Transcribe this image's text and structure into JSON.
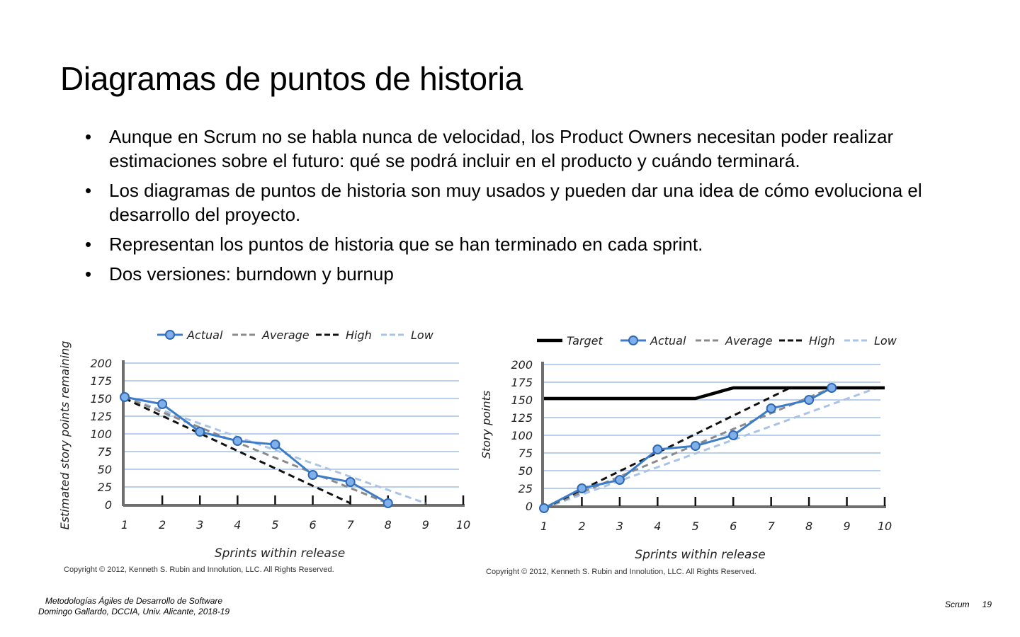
{
  "slide": {
    "title": "Diagramas de puntos de historia",
    "bullets": [
      "Aunque en Scrum no se habla nunca de velocidad, los Product Owners necesitan poder realizar estimaciones sobre el futuro: qué se podrá incluir en el producto y cuándo terminará.",
      "Los diagramas de puntos de historia son muy usados y pueden dar una idea de cómo evoluciona el desarrollo del proyecto.",
      "Representan los puntos de historia que se han terminado en cada sprint.",
      "Dos versiones: burndown y burnup"
    ]
  },
  "footer": {
    "course": "Metodologías Ágiles de Desarrollo de Software",
    "author": "Domingo Gallardo, DCCIA, Univ. Alicante, 2018-19",
    "section": "Scrum",
    "page": "19"
  },
  "colors": {
    "actual": "#3d7cc9",
    "average": "#8a8a8a",
    "high": "#111111",
    "low": "#a9c3e6",
    "target": "#000000",
    "grid": "#8db4e2",
    "axis": "#6f6f6f"
  },
  "chart_data": [
    {
      "type": "line",
      "xlabel": "Sprints within release",
      "ylabel": "Estimated story points remaining",
      "x_ticks": [
        "1",
        "2",
        "3",
        "4",
        "5",
        "6",
        "7",
        "8",
        "9",
        "10"
      ],
      "y_ticks": [
        "0",
        "25",
        "50",
        "75",
        "100",
        "125",
        "150",
        "175",
        "200"
      ],
      "xlim": [
        1,
        10
      ],
      "ylim": [
        0,
        200
      ],
      "grid": true,
      "legend_position": "top",
      "copyright": "Copyright © 2012, Kenneth S. Rubin and Innolution, LLC. All Rights Reserved.",
      "series": [
        {
          "name": "Actual",
          "style": "solid-markers",
          "points": [
            [
              1,
              152
            ],
            [
              2,
              142
            ],
            [
              3,
              103
            ],
            [
              4,
              90
            ],
            [
              5,
              85
            ],
            [
              6,
              42
            ],
            [
              7,
              32
            ],
            [
              8,
              2
            ]
          ]
        },
        {
          "name": "Average",
          "style": "dashed",
          "points": [
            [
              1,
              152
            ],
            [
              8,
              2
            ]
          ]
        },
        {
          "name": "High",
          "style": "dashed",
          "points": [
            [
              1,
              150
            ],
            [
              7,
              2
            ]
          ]
        },
        {
          "name": "Low",
          "style": "dashed",
          "points": [
            [
              1,
              152
            ],
            [
              9,
              2
            ]
          ]
        }
      ]
    },
    {
      "type": "line",
      "xlabel": "Sprints within release",
      "ylabel": "Story points",
      "x_ticks": [
        "1",
        "2",
        "3",
        "4",
        "5",
        "6",
        "7",
        "8",
        "9",
        "10"
      ],
      "y_ticks": [
        "0",
        "25",
        "50",
        "75",
        "100",
        "125",
        "150",
        "175",
        "200"
      ],
      "xlim": [
        1,
        10
      ],
      "ylim": [
        0,
        200
      ],
      "grid": true,
      "legend_position": "top",
      "copyright": "Copyright © 2012, Kenneth S. Rubin and Innolution, LLC. All Rights Reserved.",
      "series": [
        {
          "name": "Target",
          "style": "solid-thick",
          "points": [
            [
              1,
              152
            ],
            [
              5,
              152
            ],
            [
              6,
              167
            ],
            [
              10,
              167
            ]
          ]
        },
        {
          "name": "Actual",
          "style": "solid-markers",
          "points": [
            [
              1,
              -3
            ],
            [
              2,
              25
            ],
            [
              3,
              37
            ],
            [
              4,
              80
            ],
            [
              5,
              85
            ],
            [
              6,
              100
            ],
            [
              7,
              138
            ],
            [
              8,
              150
            ],
            [
              8.6,
              167
            ]
          ]
        },
        {
          "name": "Average",
          "style": "dashed",
          "points": [
            [
              1,
              -3
            ],
            [
              8.6,
              167
            ]
          ]
        },
        {
          "name": "High",
          "style": "dashed",
          "points": [
            [
              1,
              -3
            ],
            [
              7.5,
              167
            ]
          ]
        },
        {
          "name": "Low",
          "style": "dashed",
          "points": [
            [
              1,
              -3
            ],
            [
              9.8,
              167
            ]
          ]
        }
      ]
    }
  ]
}
